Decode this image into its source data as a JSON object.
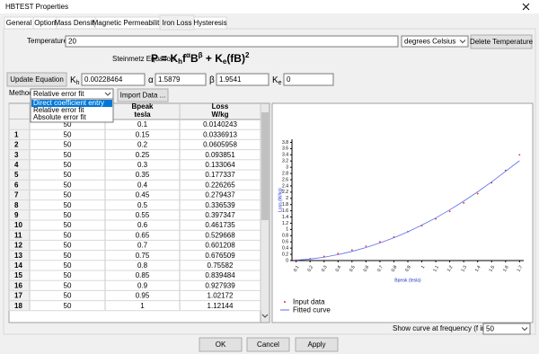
{
  "window": {
    "title": "HBTEST Properties"
  },
  "tabs": [
    "General",
    "Option",
    "Mass Density",
    "Magnetic Permeability",
    "Iron Loss",
    "Hysteresis"
  ],
  "temperature": {
    "label": "Temperature:",
    "value": "20",
    "unit": "degrees Celsius",
    "delete_button": "Delete Temperature"
  },
  "equation": {
    "label": "Steinmetz Equation:",
    "formula": [
      "P = K",
      "h",
      "f",
      "α",
      "B",
      "β",
      " + K",
      "e",
      "(fB)",
      "2"
    ]
  },
  "coefficients": {
    "update_button": "Update Equation",
    "kh": {
      "symbol": "K",
      "subscript": "h",
      "value": "0.00228464"
    },
    "alpha": {
      "symbol": "α",
      "value": "1.5879"
    },
    "beta": {
      "symbol": "β",
      "value": "1.9541"
    },
    "ke": {
      "symbol": "K",
      "subscript": "e",
      "value": "0"
    }
  },
  "method": {
    "label": "Method:",
    "selected": "Relative error fit",
    "options": [
      "Direct coefficient entry",
      "Relative error fit",
      "Absolute error fit"
    ],
    "import_button": "Import Data ..."
  },
  "table": {
    "headers": {
      "bpeak": [
        "Bpeak",
        "tesla"
      ],
      "loss": [
        "Loss",
        "W/kg"
      ]
    },
    "rows": [
      {
        "cells": [
          "50",
          "0.1",
          "0.0140243"
        ]
      },
      {
        "number": "1",
        "cells": [
          "50",
          "0.15",
          "0.0336913"
        ]
      },
      {
        "number": "2",
        "cells": [
          "50",
          "0.2",
          "0.0605958"
        ]
      },
      {
        "number": "3",
        "cells": [
          "50",
          "0.25",
          "0.093851"
        ]
      },
      {
        "number": "4",
        "cells": [
          "50",
          "0.3",
          "0.133064"
        ]
      },
      {
        "number": "5",
        "cells": [
          "50",
          "0.35",
          "0.177337"
        ]
      },
      {
        "number": "6",
        "cells": [
          "50",
          "0.4",
          "0.226265"
        ]
      },
      {
        "number": "7",
        "cells": [
          "50",
          "0.45",
          "0.279437"
        ]
      },
      {
        "number": "8",
        "cells": [
          "50",
          "0.5",
          "0.336539"
        ]
      },
      {
        "number": "9",
        "cells": [
          "50",
          "0.55",
          "0.397347"
        ]
      },
      {
        "number": "10",
        "cells": [
          "50",
          "0.6",
          "0.461735"
        ]
      },
      {
        "number": "11",
        "cells": [
          "50",
          "0.65",
          "0.529668"
        ]
      },
      {
        "number": "12",
        "cells": [
          "50",
          "0.7",
          "0.601208"
        ]
      },
      {
        "number": "13",
        "cells": [
          "50",
          "0.75",
          "0.676509"
        ]
      },
      {
        "number": "14",
        "cells": [
          "50",
          "0.8",
          "0.75582"
        ]
      },
      {
        "number": "15",
        "cells": [
          "50",
          "0.85",
          "0.839484"
        ]
      },
      {
        "number": "16",
        "cells": [
          "50",
          "0.9",
          "0.927939"
        ]
      },
      {
        "number": "17",
        "cells": [
          "50",
          "0.95",
          "1.02172"
        ]
      },
      {
        "number": "18",
        "cells": [
          "50",
          "1",
          "1.12144"
        ]
      }
    ]
  },
  "chart_data": {
    "type": "scatter",
    "x_label": "Bpeak (tesla)",
    "y_label": "Loss (W/kg)",
    "x": [
      0.1,
      0.2,
      0.3,
      0.4,
      0.5,
      0.6,
      0.7,
      0.8,
      0.9,
      1.0,
      1.1,
      1.2,
      1.3,
      1.4,
      1.5,
      1.6,
      1.7
    ],
    "series": [
      {
        "name": "Input data",
        "style": "markers",
        "color": "#e03030",
        "values": [
          0.014,
          0.061,
          0.133,
          0.226,
          0.337,
          0.462,
          0.601,
          0.756,
          0.928,
          1.121,
          1.34,
          1.58,
          1.85,
          2.15,
          2.5,
          2.9,
          3.4
        ]
      },
      {
        "name": "Fitted curve",
        "style": "line",
        "color": "#5a6cf0",
        "values": [
          0.013,
          0.049,
          0.109,
          0.191,
          0.294,
          0.42,
          0.566,
          0.734,
          0.924,
          1.14,
          1.37,
          1.63,
          1.91,
          2.21,
          2.53,
          2.87,
          3.21
        ]
      }
    ],
    "xlim": [
      0.07,
      1.73
    ],
    "ylim": [
      0,
      3.9
    ],
    "xticks": [
      0.1,
      0.2,
      0.3,
      0.4,
      0.5,
      0.6,
      0.7,
      0.8,
      0.9,
      1,
      1.1,
      1.2,
      1.3,
      1.4,
      1.5,
      1.6,
      1.7
    ],
    "yticks": [
      0,
      0.2,
      0.4,
      0.6,
      0.8,
      1,
      1.2,
      1.4,
      1.6,
      1.8,
      2,
      2.2,
      2.4,
      2.6,
      2.8,
      3,
      3.2,
      3.4,
      3.6,
      3.8
    ],
    "legend": "lower-left"
  },
  "footer": {
    "frequency_label": "Show curve at frequency (f in Hz)",
    "frequency": "50",
    "buttons": [
      "OK",
      "Cancel",
      "Apply"
    ]
  }
}
